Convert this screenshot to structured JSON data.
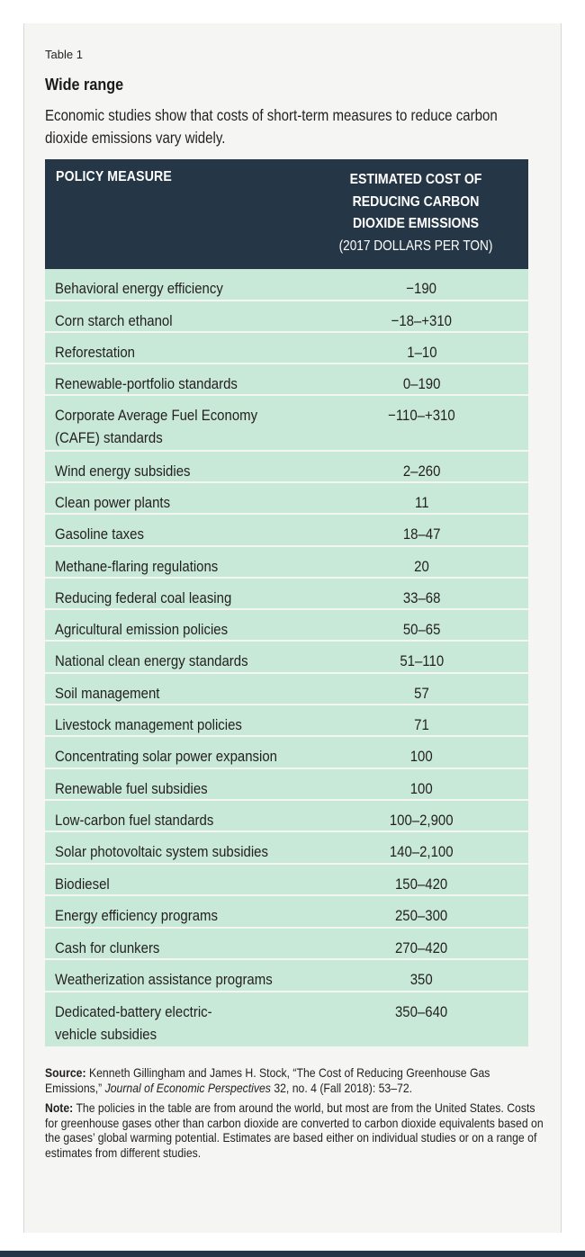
{
  "table_label": "Table 1",
  "title": "Wide range",
  "subtitle": "Economic studies show that costs of short-term measures to reduce carbon dioxide emissions vary widely.",
  "header": {
    "col1": "POLICY MEASURE",
    "col2_line1": "ESTIMATED COST OF",
    "col2_line2": "REDUCING CARBON",
    "col2_line3": "DIOXIDE EMISSIONS",
    "col2_unit": "(2017 DOLLARS PER TON)"
  },
  "rows": [
    {
      "measure": "Behavioral energy efficiency",
      "cost": "−190"
    },
    {
      "measure": "Corn starch ethanol",
      "cost": "−18–+310"
    },
    {
      "measure": "Reforestation",
      "cost": "1–10"
    },
    {
      "measure": "Renewable-portfolio standards",
      "cost": "0–190"
    },
    {
      "measure_line1": "Corporate Average Fuel Economy",
      "measure_line2": "(CAFE) standards",
      "cost": "−110–+310"
    },
    {
      "measure": "Wind energy subsidies",
      "cost": "2–260"
    },
    {
      "measure": "Clean power plants",
      "cost": "11"
    },
    {
      "measure": "Gasoline taxes",
      "cost": "18–47"
    },
    {
      "measure": "Methane-flaring regulations",
      "cost": "20"
    },
    {
      "measure": "Reducing federal coal leasing",
      "cost": "33–68"
    },
    {
      "measure": "Agricultural emission policies",
      "cost": "50–65"
    },
    {
      "measure": "National clean energy standards",
      "cost": "51–110"
    },
    {
      "measure": "Soil management",
      "cost": "57"
    },
    {
      "measure": "Livestock management policies",
      "cost": "71"
    },
    {
      "measure": "Concentrating solar power expansion",
      "cost": "100"
    },
    {
      "measure": "Renewable fuel subsidies",
      "cost": "100"
    },
    {
      "measure": "Low-carbon fuel standards",
      "cost": "100–2,900"
    },
    {
      "measure": "Solar photovoltaic system subsidies",
      "cost": "140–2,100"
    },
    {
      "measure": "Biodiesel",
      "cost": "150–420"
    },
    {
      "measure": "Energy efficiency programs",
      "cost": "250–300"
    },
    {
      "measure": "Cash for clunkers",
      "cost": "270–420"
    },
    {
      "measure": "Weatherization assistance programs",
      "cost": "350"
    },
    {
      "measure_line1": "Dedicated-battery electric-",
      "measure_line2": "vehicle subsidies",
      "cost": "350–640"
    }
  ],
  "source": {
    "label": "Source:",
    "text_a": "Kenneth Gillingham and James H. Stock, “The Cost of Reducing Greenhouse Gas Emissions,”",
    "journal": "Journal of Economic Perspectives",
    "text_b": "32, no. 4 (Fall 2018): 53–72."
  },
  "note": {
    "label": "Note:",
    "text": "The policies in the table are from around the world, but most are from the United States. Costs for greenhouse gases other than carbon dioxide are converted to carbon dioxide equivalents based on the gases’ global warming potential. Estimates are based either on individual studies or on a range of estimates from different studies."
  },
  "colors": {
    "header_bg": "#253746",
    "row_bg": "#c9e9d8",
    "panel_bg": "#f5f5f4"
  }
}
